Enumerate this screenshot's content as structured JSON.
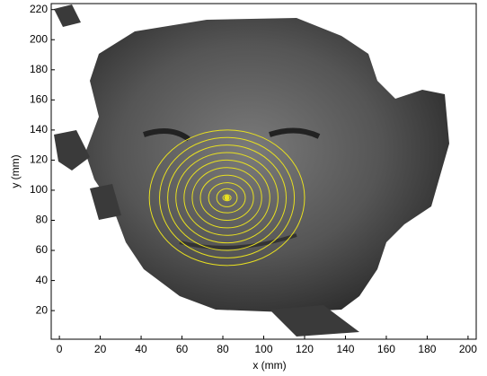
{
  "chart_data": {
    "type": "contour",
    "xlabel": "x (mm)",
    "ylabel": "y (mm)",
    "xlim": [
      -4,
      204
    ],
    "ylim": [
      1,
      224
    ],
    "xticks": [
      0,
      20,
      40,
      60,
      80,
      100,
      120,
      140,
      160,
      180,
      200
    ],
    "yticks": [
      20,
      40,
      60,
      80,
      100,
      120,
      140,
      160,
      180,
      200,
      220
    ],
    "color": "#e8e020",
    "center": {
      "x": 82,
      "y": 95
    },
    "contours": [
      {
        "rx": 2,
        "ry": 2
      },
      {
        "rx": 5,
        "ry": 6
      },
      {
        "rx": 9,
        "ry": 10
      },
      {
        "rx": 13,
        "ry": 15
      },
      {
        "rx": 17,
        "ry": 20
      },
      {
        "rx": 21,
        "ry": 25
      },
      {
        "rx": 25,
        "ry": 30
      },
      {
        "rx": 29,
        "ry": 35
      },
      {
        "rx": 33,
        "ry": 40
      },
      {
        "rx": 38,
        "ry": 45
      }
    ]
  }
}
